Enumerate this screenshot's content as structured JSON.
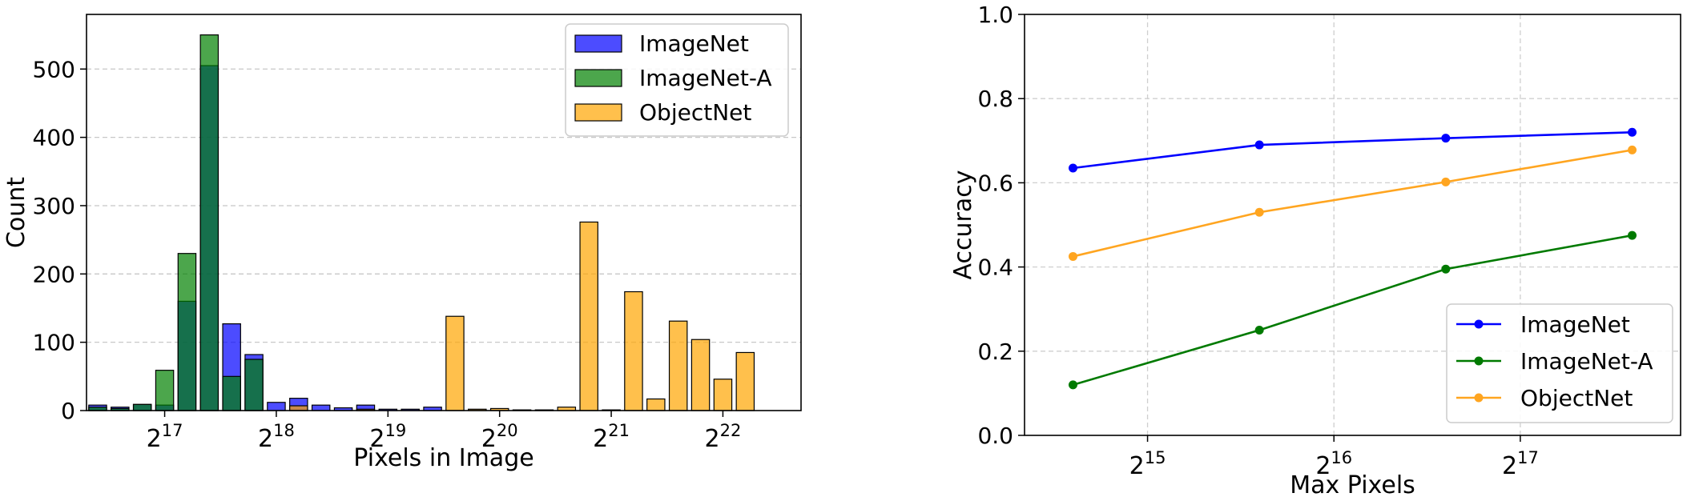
{
  "chart_data": [
    {
      "type": "bar",
      "xlabel": "Pixels in Image",
      "ylabel": "Count",
      "ylim": [
        0,
        580
      ],
      "yticks": [
        0,
        100,
        200,
        300,
        400,
        500
      ],
      "xscale": "log2",
      "xticks": [
        {
          "exp": 17,
          "label": "2",
          "sup": "17"
        },
        {
          "exp": 18,
          "label": "2",
          "sup": "18"
        },
        {
          "exp": 19,
          "label": "2",
          "sup": "19"
        },
        {
          "exp": 20,
          "label": "2",
          "sup": "20"
        },
        {
          "exp": 21,
          "label": "2",
          "sup": "21"
        },
        {
          "exp": 22,
          "label": "2",
          "sup": "22"
        }
      ],
      "grid": "y-dashed",
      "legend": "top-right",
      "bin_log2_centers": [
        16.4,
        16.6,
        16.8,
        17.0,
        17.2,
        17.4,
        17.6,
        17.8,
        18.0,
        18.2,
        18.4,
        18.6,
        18.8,
        19.0,
        19.2,
        19.4,
        19.6,
        19.8,
        20.0,
        20.2,
        20.4,
        20.6,
        20.8,
        21.0,
        21.2,
        21.4,
        21.6,
        21.8,
        22.0,
        22.2,
        22.4,
        22.6
      ],
      "series": [
        {
          "name": "ImageNet",
          "color": "#0000ff",
          "alpha": 0.7,
          "values": [
            8,
            5,
            9,
            8,
            160,
            505,
            127,
            82,
            12,
            18,
            8,
            4,
            8,
            2,
            2,
            5,
            0,
            0,
            0,
            0,
            0,
            0,
            0,
            0,
            0,
            0,
            0,
            0,
            0,
            0,
            0,
            0
          ]
        },
        {
          "name": "ImageNet-A",
          "color": "#008000",
          "alpha": 0.7,
          "values": [
            5,
            3,
            9,
            59,
            230,
            550,
            50,
            75,
            0,
            0,
            0,
            0,
            0,
            0,
            0,
            0,
            0,
            0,
            0,
            0,
            0,
            0,
            0,
            0,
            0,
            0,
            0,
            0,
            0,
            0,
            0,
            0
          ]
        },
        {
          "name": "ObjectNet",
          "color": "#ffa500",
          "alpha": 0.7,
          "values": [
            0,
            0,
            0,
            0,
            0,
            0,
            0,
            0,
            0,
            7,
            0,
            0,
            2,
            0,
            0,
            0,
            138,
            2,
            3,
            1,
            1,
            5,
            276,
            1,
            174,
            17,
            131,
            104,
            46,
            85,
            0,
            0
          ]
        }
      ]
    },
    {
      "type": "line",
      "xlabel": "Max Pixels",
      "ylabel": "Accuracy",
      "ylim": [
        0.0,
        1.0
      ],
      "yticks": [
        "0.0",
        "0.2",
        "0.4",
        "0.6",
        "0.8",
        "1.0"
      ],
      "xscale": "log2",
      "xticks": [
        {
          "exp": 15,
          "label": "2",
          "sup": "15"
        },
        {
          "exp": 16,
          "label": "2",
          "sup": "16"
        },
        {
          "exp": 17,
          "label": "2",
          "sup": "17"
        }
      ],
      "grid": "both-dashed",
      "legend": "bottom-right",
      "x_log2": [
        14.6,
        15.6,
        16.6,
        17.6
      ],
      "series": [
        {
          "name": "ImageNet",
          "color": "#0000ff",
          "values": [
            0.635,
            0.69,
            0.706,
            0.72
          ]
        },
        {
          "name": "ImageNet-A",
          "color": "#007a00",
          "values": [
            0.12,
            0.25,
            0.395,
            0.475
          ]
        },
        {
          "name": "ObjectNet",
          "color": "#ffa520",
          "values": [
            0.425,
            0.53,
            0.602,
            0.678
          ]
        }
      ]
    }
  ]
}
